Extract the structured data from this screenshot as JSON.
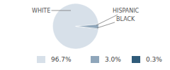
{
  "chart_data": {
    "type": "pie",
    "categories": [
      "WHITE",
      "HISPANIC",
      "BLACK"
    ],
    "values": [
      96.7,
      3.0,
      0.3
    ],
    "value_labels": [
      "96.7%",
      "3.0%",
      "0.3%"
    ],
    "colors": [
      "#d7e0e9",
      "#8fa6ba",
      "#2f5b79"
    ]
  }
}
